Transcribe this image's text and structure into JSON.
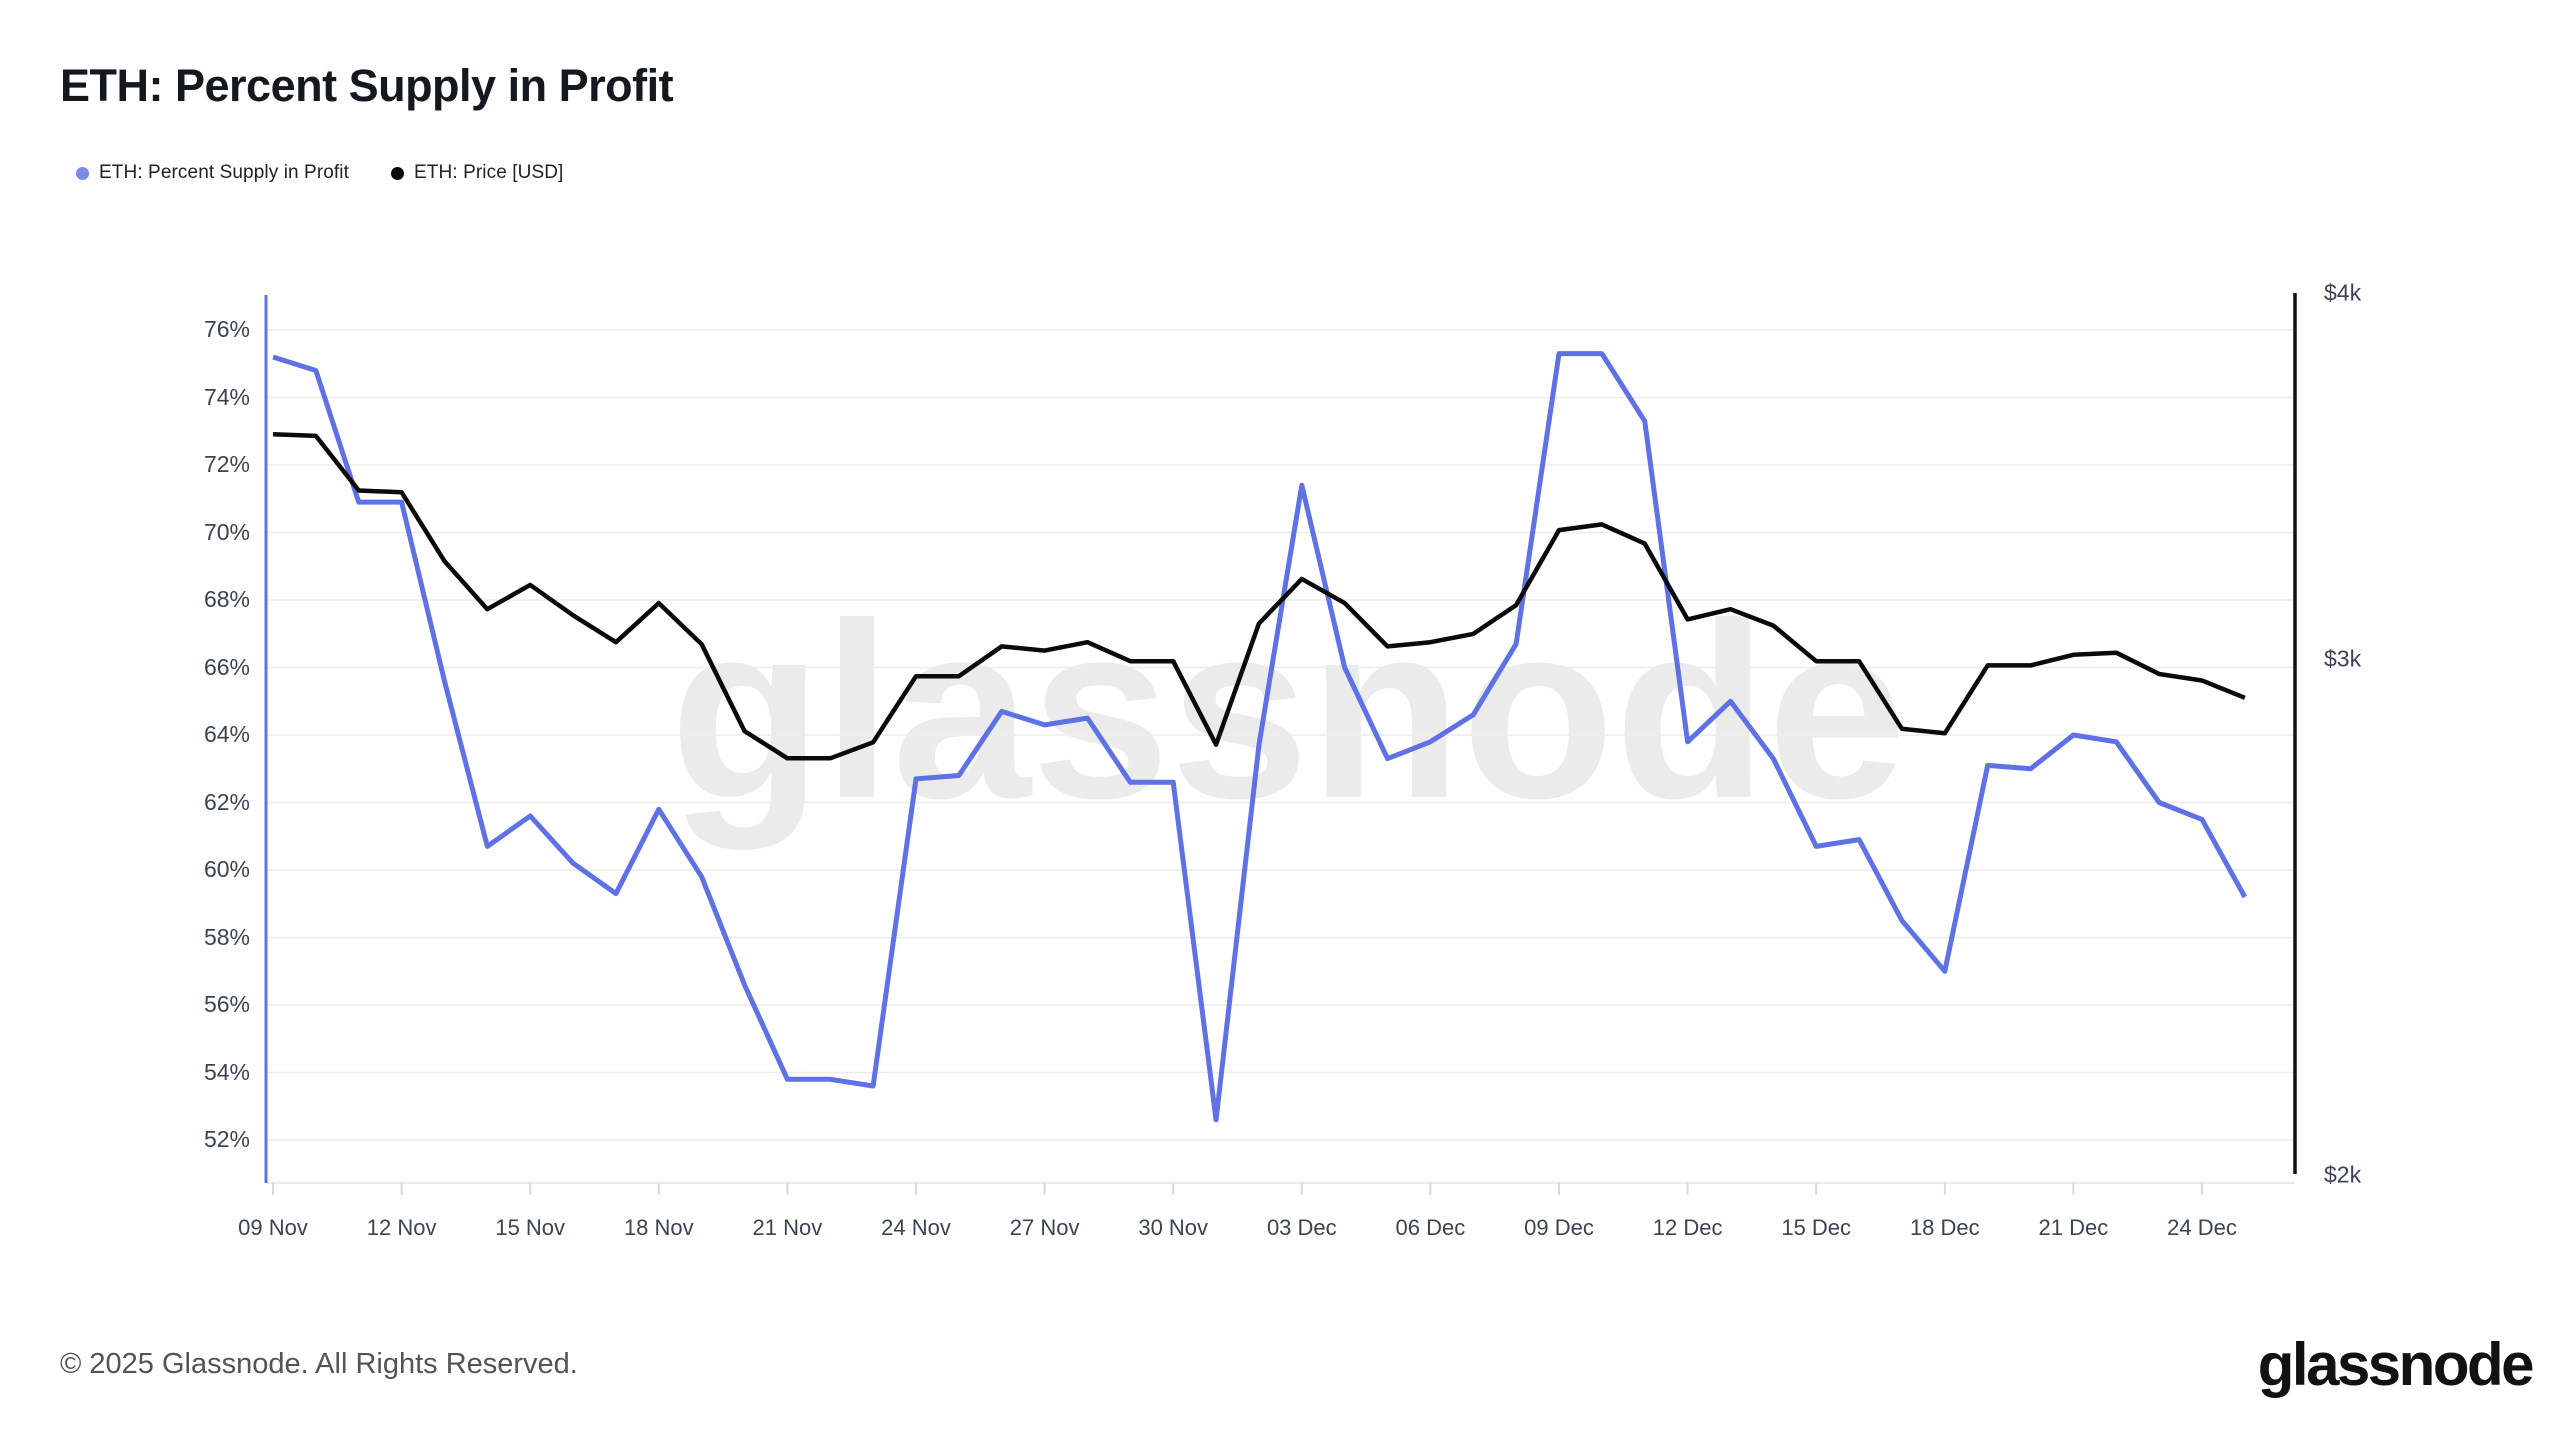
{
  "header": {
    "title": "ETH: Percent Supply in Profit"
  },
  "legend": {
    "items": [
      {
        "label": "ETH: Percent Supply in Profit",
        "color": "#7b89ec"
      },
      {
        "label": "ETH: Price [USD]",
        "color": "#0a0a0a"
      }
    ]
  },
  "watermark": {
    "text": "glassnode"
  },
  "footer": {
    "copyright": "© 2025 Glassnode. All Rights Reserved.",
    "logo_text": "glassnode"
  },
  "chart_data": {
    "type": "line",
    "title": "ETH: Percent Supply in Profit",
    "grid": "horizontal",
    "legend_position": "top-left",
    "x": [
      "09 Nov",
      "10 Nov",
      "11 Nov",
      "12 Nov",
      "13 Nov",
      "14 Nov",
      "15 Nov",
      "16 Nov",
      "17 Nov",
      "18 Nov",
      "19 Nov",
      "20 Nov",
      "21 Nov",
      "22 Nov",
      "23 Nov",
      "24 Nov",
      "25 Nov",
      "26 Nov",
      "27 Nov",
      "28 Nov",
      "29 Nov",
      "30 Nov",
      "01 Dec",
      "02 Dec",
      "03 Dec",
      "04 Dec",
      "05 Dec",
      "06 Dec",
      "07 Dec",
      "08 Dec",
      "09 Dec",
      "10 Dec",
      "11 Dec",
      "12 Dec",
      "13 Dec",
      "14 Dec",
      "15 Dec",
      "16 Dec",
      "17 Dec",
      "18 Dec",
      "19 Dec",
      "20 Dec",
      "21 Dec",
      "22 Dec",
      "23 Dec",
      "24 Dec",
      "25 Dec"
    ],
    "x_tick_labels": [
      "09 Nov",
      "12 Nov",
      "15 Nov",
      "18 Nov",
      "21 Nov",
      "24 Nov",
      "27 Nov",
      "30 Nov",
      "03 Dec",
      "06 Dec",
      "09 Dec",
      "12 Dec",
      "15 Dec",
      "18 Dec",
      "21 Dec",
      "24 Dec"
    ],
    "left_axis": {
      "unit": "%",
      "min": 52,
      "max": 76,
      "tick_step": 2,
      "tick_labels": [
        "76%",
        "74%",
        "72%",
        "70%",
        "68%",
        "66%",
        "64%",
        "62%",
        "60%",
        "58%",
        "56%",
        "54%",
        "52%"
      ]
    },
    "right_axis": {
      "unit": "USD",
      "scale": "log",
      "min": 2000,
      "max": 4000,
      "tick_labels": [
        "$4k",
        "$3k",
        "$2k"
      ]
    },
    "series": [
      {
        "name": "ETH: Percent Supply in Profit",
        "axis": "left",
        "color": "#5e71e5",
        "unit": "%",
        "values": [
          75.2,
          74.8,
          70.9,
          70.9,
          65.6,
          60.7,
          61.6,
          60.2,
          59.3,
          61.8,
          59.8,
          56.6,
          53.8,
          53.8,
          53.6,
          62.7,
          62.8,
          64.7,
          64.3,
          64.5,
          62.6,
          62.6,
          52.6,
          63.7,
          71.4,
          66.0,
          63.3,
          63.8,
          64.6,
          66.7,
          75.3,
          75.3,
          73.3,
          63.8,
          65.0,
          63.3,
          60.7,
          60.9,
          58.5,
          57.0,
          63.1,
          63.0,
          64.0,
          63.8,
          62.0,
          61.5,
          59.2
        ]
      },
      {
        "name": "ETH: Price [USD]",
        "axis": "right",
        "color": "#0a0a0a",
        "unit": "USD",
        "values": [
          3580,
          3575,
          3425,
          3420,
          3240,
          3120,
          3180,
          3105,
          3040,
          3135,
          3035,
          2835,
          2775,
          2775,
          2810,
          2960,
          2960,
          3030,
          3020,
          3040,
          2995,
          2995,
          2805,
          3085,
          3195,
          3135,
          3030,
          3040,
          3060,
          3130,
          3320,
          3335,
          3285,
          3095,
          3120,
          3080,
          2995,
          2995,
          2840,
          2830,
          2985,
          2985,
          3010,
          3015,
          2965,
          2950,
          2910
        ]
      }
    ]
  }
}
